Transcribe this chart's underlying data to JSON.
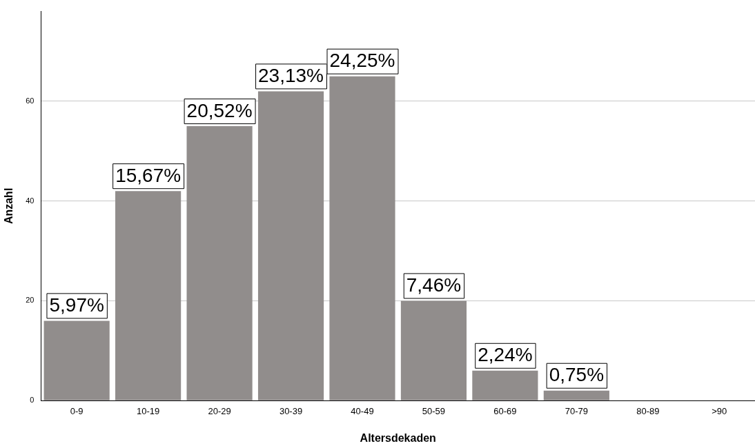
{
  "chart_data": {
    "type": "bar",
    "xlabel": "Altersdekaden",
    "ylabel": "Anzahl",
    "categories": [
      "0-9",
      "10-19",
      "20-29",
      "30-39",
      "40-49",
      "50-59",
      "60-69",
      "70-79",
      "80-89",
      ">90"
    ],
    "values": [
      16,
      42,
      55,
      62,
      65,
      20,
      6,
      2,
      0,
      0
    ],
    "annotations": [
      {
        "text": "5,97%",
        "x": "0-9",
        "y": 16
      },
      {
        "text": "15,67%",
        "x": "10-19",
        "y": 42
      },
      {
        "text": "20,52%",
        "x": "20-29",
        "y": 55
      },
      {
        "text": "23,13%",
        "x": "30-39",
        "y": 62
      },
      {
        "text": "24,25%",
        "x": "40-49",
        "y": 65
      },
      {
        "text": "7,46%",
        "x": "50-59",
        "y": 20
      },
      {
        "text": "2,24%",
        "x": "60-69",
        "y": 6
      },
      {
        "text": "0,75%",
        "x": "70-79",
        "y": 2
      }
    ],
    "color": "#918d8c",
    "ylim": [
      0,
      78
    ],
    "yticks": [
      0,
      20,
      40,
      60
    ],
    "grid": "y",
    "legend": false
  }
}
